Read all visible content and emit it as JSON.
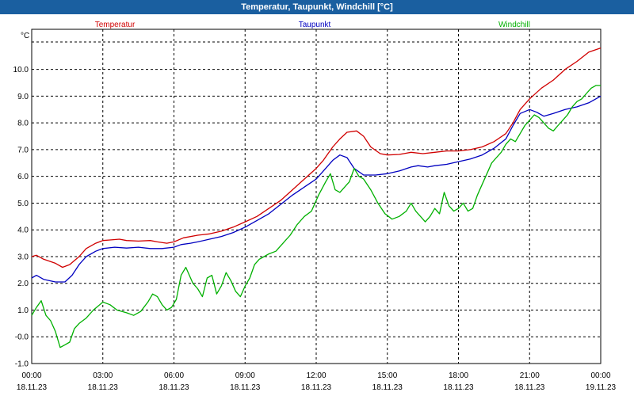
{
  "window": {
    "title": "Temperatur, Taupunkt, Windchill [°C]"
  },
  "chart_data": {
    "type": "line",
    "title": "Temperatur, Taupunkt, Windchill [°C]",
    "ylabel": "°C",
    "ylim": [
      -1.0,
      11.5
    ],
    "xlim": [
      0,
      24
    ],
    "grid": true,
    "y_ticks": [
      -1.0,
      0.0,
      1.0,
      2.0,
      3.0,
      4.0,
      5.0,
      6.0,
      7.0,
      8.0,
      9.0,
      10.0
    ],
    "y_tick_labels": [
      "-1.0",
      "-0.0",
      "1.0",
      "2.0",
      "3.0",
      "4.0",
      "5.0",
      "6.0",
      "7.0",
      "8.0",
      "9.0",
      "10.0"
    ],
    "x_ticks": [
      {
        "hour": 0,
        "time": "00:00",
        "date": "18.11.23"
      },
      {
        "hour": 3,
        "time": "03:00",
        "date": "18.11.23"
      },
      {
        "hour": 6,
        "time": "06:00",
        "date": "18.11.23"
      },
      {
        "hour": 9,
        "time": "09:00",
        "date": "18.11.23"
      },
      {
        "hour": 12,
        "time": "12:00",
        "date": "18.11.23"
      },
      {
        "hour": 15,
        "time": "15:00",
        "date": "18.11.23"
      },
      {
        "hour": 18,
        "time": "18:00",
        "date": "18.11.23"
      },
      {
        "hour": 21,
        "time": "21:00",
        "date": "18.11.23"
      },
      {
        "hour": 24,
        "time": "00:00",
        "date": "19.11.23"
      }
    ],
    "series": [
      {
        "name": "Temperatur",
        "color": "#d00000",
        "legend_position": "top-left",
        "points": [
          [
            0,
            3.0
          ],
          [
            0.2,
            3.05
          ],
          [
            0.5,
            2.9
          ],
          [
            1,
            2.75
          ],
          [
            1.3,
            2.6
          ],
          [
            1.6,
            2.7
          ],
          [
            2,
            3.0
          ],
          [
            2.3,
            3.3
          ],
          [
            2.7,
            3.5
          ],
          [
            3,
            3.6
          ],
          [
            3.3,
            3.62
          ],
          [
            3.7,
            3.65
          ],
          [
            4,
            3.6
          ],
          [
            4.5,
            3.58
          ],
          [
            5,
            3.6
          ],
          [
            5.3,
            3.55
          ],
          [
            5.7,
            3.5
          ],
          [
            6,
            3.55
          ],
          [
            6.4,
            3.7
          ],
          [
            7,
            3.8
          ],
          [
            7.5,
            3.85
          ],
          [
            8,
            3.95
          ],
          [
            8.5,
            4.1
          ],
          [
            9,
            4.3
          ],
          [
            9.5,
            4.5
          ],
          [
            10,
            4.8
          ],
          [
            10.5,
            5.1
          ],
          [
            11,
            5.5
          ],
          [
            11.5,
            5.9
          ],
          [
            12,
            6.3
          ],
          [
            12.3,
            6.6
          ],
          [
            12.7,
            7.1
          ],
          [
            13,
            7.4
          ],
          [
            13.3,
            7.65
          ],
          [
            13.7,
            7.7
          ],
          [
            14,
            7.5
          ],
          [
            14.3,
            7.1
          ],
          [
            14.7,
            6.85
          ],
          [
            15,
            6.8
          ],
          [
            15.5,
            6.82
          ],
          [
            16,
            6.9
          ],
          [
            16.5,
            6.85
          ],
          [
            17,
            6.9
          ],
          [
            17.5,
            6.95
          ],
          [
            18,
            6.95
          ],
          [
            18.5,
            7.0
          ],
          [
            19,
            7.1
          ],
          [
            19.5,
            7.3
          ],
          [
            20,
            7.6
          ],
          [
            20.3,
            8.0
          ],
          [
            20.6,
            8.5
          ],
          [
            21,
            8.9
          ],
          [
            21.5,
            9.3
          ],
          [
            22,
            9.6
          ],
          [
            22.5,
            10.0
          ],
          [
            23,
            10.3
          ],
          [
            23.5,
            10.65
          ],
          [
            24,
            10.8
          ]
        ]
      },
      {
        "name": "Taupunkt",
        "color": "#0000c0",
        "legend_position": "top-center",
        "points": [
          [
            0,
            2.2
          ],
          [
            0.2,
            2.3
          ],
          [
            0.5,
            2.15
          ],
          [
            1,
            2.05
          ],
          [
            1.4,
            2.05
          ],
          [
            1.7,
            2.3
          ],
          [
            2,
            2.7
          ],
          [
            2.3,
            3.0
          ],
          [
            2.7,
            3.2
          ],
          [
            3,
            3.3
          ],
          [
            3.5,
            3.35
          ],
          [
            4,
            3.32
          ],
          [
            4.5,
            3.35
          ],
          [
            5,
            3.3
          ],
          [
            5.5,
            3.3
          ],
          [
            6,
            3.35
          ],
          [
            6.3,
            3.45
          ],
          [
            6.7,
            3.5
          ],
          [
            7,
            3.55
          ],
          [
            7.5,
            3.65
          ],
          [
            8,
            3.75
          ],
          [
            8.5,
            3.9
          ],
          [
            9,
            4.1
          ],
          [
            9.5,
            4.35
          ],
          [
            10,
            4.6
          ],
          [
            10.5,
            4.95
          ],
          [
            11,
            5.3
          ],
          [
            11.5,
            5.6
          ],
          [
            12,
            5.9
          ],
          [
            12.3,
            6.2
          ],
          [
            12.7,
            6.6
          ],
          [
            13,
            6.8
          ],
          [
            13.3,
            6.7
          ],
          [
            13.6,
            6.3
          ],
          [
            14,
            6.05
          ],
          [
            14.5,
            6.05
          ],
          [
            15,
            6.1
          ],
          [
            15.5,
            6.2
          ],
          [
            16,
            6.35
          ],
          [
            16.3,
            6.4
          ],
          [
            16.7,
            6.35
          ],
          [
            17,
            6.4
          ],
          [
            17.5,
            6.45
          ],
          [
            18,
            6.55
          ],
          [
            18.5,
            6.65
          ],
          [
            19,
            6.8
          ],
          [
            19.5,
            7.05
          ],
          [
            20,
            7.4
          ],
          [
            20.3,
            7.9
          ],
          [
            20.6,
            8.35
          ],
          [
            21,
            8.5
          ],
          [
            21.3,
            8.4
          ],
          [
            21.6,
            8.25
          ],
          [
            22,
            8.35
          ],
          [
            22.5,
            8.5
          ],
          [
            23,
            8.6
          ],
          [
            23.5,
            8.75
          ],
          [
            24,
            9.0
          ]
        ]
      },
      {
        "name": "Windchill",
        "color": "#00b000",
        "legend_position": "top-right",
        "points": [
          [
            0,
            0.8
          ],
          [
            0.2,
            1.1
          ],
          [
            0.4,
            1.35
          ],
          [
            0.6,
            0.8
          ],
          [
            0.8,
            0.6
          ],
          [
            1,
            0.2
          ],
          [
            1.2,
            -0.4
          ],
          [
            1.4,
            -0.3
          ],
          [
            1.6,
            -0.2
          ],
          [
            1.8,
            0.3
          ],
          [
            2,
            0.5
          ],
          [
            2.3,
            0.7
          ],
          [
            2.6,
            1.0
          ],
          [
            3,
            1.3
          ],
          [
            3.3,
            1.2
          ],
          [
            3.6,
            1.0
          ],
          [
            4,
            0.9
          ],
          [
            4.3,
            0.8
          ],
          [
            4.6,
            0.95
          ],
          [
            4.9,
            1.3
          ],
          [
            5.1,
            1.6
          ],
          [
            5.3,
            1.5
          ],
          [
            5.5,
            1.2
          ],
          [
            5.7,
            1.0
          ],
          [
            5.9,
            1.1
          ],
          [
            6.1,
            1.4
          ],
          [
            6.3,
            2.3
          ],
          [
            6.5,
            2.6
          ],
          [
            6.8,
            2.0
          ],
          [
            7,
            1.8
          ],
          [
            7.2,
            1.5
          ],
          [
            7.4,
            2.2
          ],
          [
            7.6,
            2.3
          ],
          [
            7.8,
            1.6
          ],
          [
            8,
            1.9
          ],
          [
            8.2,
            2.4
          ],
          [
            8.4,
            2.1
          ],
          [
            8.6,
            1.7
          ],
          [
            8.8,
            1.5
          ],
          [
            9,
            1.9
          ],
          [
            9.2,
            2.2
          ],
          [
            9.4,
            2.7
          ],
          [
            9.6,
            2.9
          ],
          [
            9.8,
            3.0
          ],
          [
            10,
            3.1
          ],
          [
            10.3,
            3.2
          ],
          [
            10.6,
            3.5
          ],
          [
            10.9,
            3.8
          ],
          [
            11.2,
            4.2
          ],
          [
            11.5,
            4.5
          ],
          [
            11.8,
            4.7
          ],
          [
            12.1,
            5.3
          ],
          [
            12.4,
            5.8
          ],
          [
            12.6,
            6.1
          ],
          [
            12.8,
            5.5
          ],
          [
            13,
            5.4
          ],
          [
            13.2,
            5.6
          ],
          [
            13.4,
            5.8
          ],
          [
            13.6,
            6.3
          ],
          [
            13.8,
            6.0
          ],
          [
            14,
            5.9
          ],
          [
            14.3,
            5.5
          ],
          [
            14.6,
            5.0
          ],
          [
            14.9,
            4.6
          ],
          [
            15.2,
            4.4
          ],
          [
            15.5,
            4.5
          ],
          [
            15.8,
            4.7
          ],
          [
            16,
            5.0
          ],
          [
            16.2,
            4.7
          ],
          [
            16.4,
            4.5
          ],
          [
            16.6,
            4.3
          ],
          [
            16.8,
            4.5
          ],
          [
            17,
            4.8
          ],
          [
            17.2,
            4.6
          ],
          [
            17.4,
            5.4
          ],
          [
            17.6,
            4.9
          ],
          [
            17.8,
            4.7
          ],
          [
            18,
            4.8
          ],
          [
            18.2,
            5.0
          ],
          [
            18.4,
            4.7
          ],
          [
            18.6,
            4.8
          ],
          [
            18.8,
            5.3
          ],
          [
            19,
            5.7
          ],
          [
            19.2,
            6.1
          ],
          [
            19.4,
            6.5
          ],
          [
            19.6,
            6.7
          ],
          [
            19.8,
            6.9
          ],
          [
            20,
            7.2
          ],
          [
            20.2,
            7.4
          ],
          [
            20.4,
            7.3
          ],
          [
            20.6,
            7.6
          ],
          [
            20.8,
            7.9
          ],
          [
            21,
            8.1
          ],
          [
            21.2,
            8.3
          ],
          [
            21.4,
            8.2
          ],
          [
            21.6,
            8.0
          ],
          [
            21.8,
            7.8
          ],
          [
            22,
            7.7
          ],
          [
            22.2,
            7.9
          ],
          [
            22.4,
            8.1
          ],
          [
            22.6,
            8.3
          ],
          [
            22.8,
            8.6
          ],
          [
            23,
            8.8
          ],
          [
            23.2,
            8.9
          ],
          [
            23.4,
            9.1
          ],
          [
            23.6,
            9.3
          ],
          [
            23.8,
            9.4
          ],
          [
            24,
            9.4
          ]
        ]
      }
    ]
  }
}
